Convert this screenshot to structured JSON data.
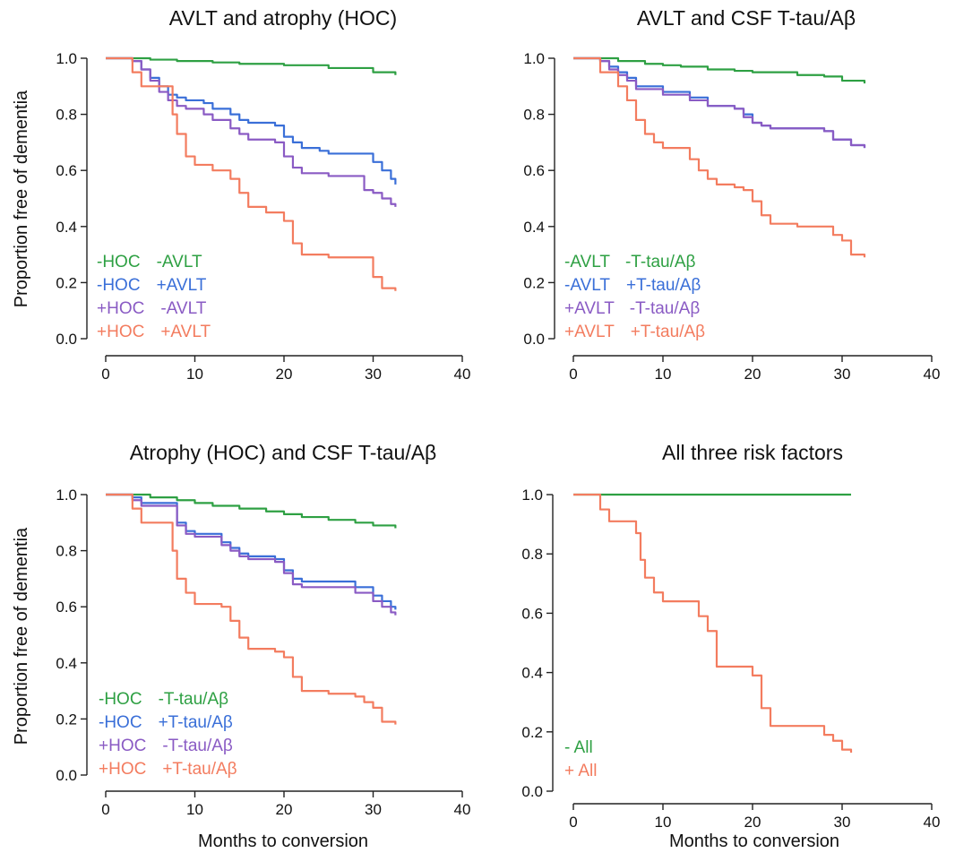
{
  "colors": {
    "green": "#2ea043",
    "blue": "#3a6fd8",
    "purple": "#8a5bc4",
    "red": "#f37c5f"
  },
  "chart_data": [
    {
      "type": "line",
      "title": "AVLT and atrophy (HOC)",
      "ylabel": "Proportion free of dementia",
      "xlabel": "",
      "xlim": [
        0,
        40
      ],
      "ylim": [
        0,
        1
      ],
      "xticks": [
        0,
        10,
        20,
        30,
        40
      ],
      "yticks": [
        "0.0",
        "0.2",
        "0.4",
        "0.6",
        "0.8",
        "1.0"
      ],
      "legend_placement": "bottom-left",
      "series": [
        {
          "name": [
            "-HOC",
            "-AVLT"
          ],
          "color": "#2ea043",
          "x": [
            0,
            3,
            5,
            8,
            12,
            15,
            20,
            25,
            30,
            32.5
          ],
          "y": [
            1.0,
            1.0,
            0.995,
            0.99,
            0.985,
            0.98,
            0.975,
            0.965,
            0.95,
            0.94
          ]
        },
        {
          "name": [
            "-HOC",
            "+AVLT"
          ],
          "color": "#3a6fd8",
          "x": [
            0,
            3,
            4,
            5,
            6,
            7,
            8,
            9,
            10,
            11,
            12,
            14,
            15,
            16,
            17,
            19,
            20,
            21,
            22,
            24,
            25,
            28,
            30,
            31,
            32,
            32.5
          ],
          "y": [
            1.0,
            0.99,
            0.96,
            0.93,
            0.9,
            0.87,
            0.86,
            0.85,
            0.85,
            0.84,
            0.82,
            0.8,
            0.78,
            0.77,
            0.77,
            0.76,
            0.72,
            0.7,
            0.68,
            0.67,
            0.66,
            0.66,
            0.63,
            0.6,
            0.57,
            0.55
          ]
        },
        {
          "name": [
            "+HOC",
            "-AVLT"
          ],
          "color": "#8a5bc4",
          "x": [
            0,
            3,
            4,
            5,
            6,
            7,
            8,
            9,
            10,
            11,
            12,
            14,
            15,
            16,
            19,
            20,
            21,
            22,
            24,
            25,
            28,
            29,
            30,
            31,
            32,
            32.5
          ],
          "y": [
            1.0,
            0.99,
            0.96,
            0.92,
            0.88,
            0.85,
            0.83,
            0.82,
            0.82,
            0.8,
            0.78,
            0.75,
            0.73,
            0.71,
            0.7,
            0.65,
            0.61,
            0.59,
            0.59,
            0.58,
            0.58,
            0.53,
            0.52,
            0.5,
            0.48,
            0.47
          ]
        },
        {
          "name": [
            "+HOC",
            "+AVLT"
          ],
          "color": "#f37c5f",
          "x": [
            0,
            2.5,
            3,
            4,
            7,
            7.5,
            8,
            9,
            10,
            12,
            14,
            15,
            16,
            18,
            20,
            21,
            22,
            25,
            29,
            30,
            31,
            32.5
          ],
          "y": [
            1.0,
            1.0,
            0.95,
            0.9,
            0.9,
            0.8,
            0.73,
            0.65,
            0.62,
            0.6,
            0.57,
            0.52,
            0.47,
            0.45,
            0.42,
            0.34,
            0.3,
            0.29,
            0.29,
            0.22,
            0.18,
            0.17
          ]
        }
      ]
    },
    {
      "type": "line",
      "title": "AVLT and CSF T-tau/Aβ",
      "ylabel": "",
      "xlabel": "",
      "xlim": [
        0,
        40
      ],
      "ylim": [
        0,
        1
      ],
      "xticks": [
        0,
        10,
        20,
        30,
        40
      ],
      "yticks": [
        "0.0",
        "0.2",
        "0.4",
        "0.6",
        "0.8",
        "1.0"
      ],
      "legend_placement": "bottom-left",
      "series": [
        {
          "name": [
            "-AVLT",
            "-T-tau/Aβ"
          ],
          "color": "#2ea043",
          "x": [
            0,
            3,
            5,
            8,
            10,
            12,
            15,
            18,
            20,
            25,
            28,
            30,
            32.5
          ],
          "y": [
            1.0,
            1.0,
            0.99,
            0.98,
            0.975,
            0.97,
            0.96,
            0.955,
            0.95,
            0.94,
            0.935,
            0.92,
            0.91
          ]
        },
        {
          "name": [
            "-AVLT",
            "+T-tau/Aβ"
          ],
          "color": "#3a6fd8",
          "x": [
            0,
            3,
            4,
            5,
            6,
            7,
            9,
            10,
            12,
            13,
            15,
            16,
            18,
            19,
            20,
            21,
            22,
            25,
            28,
            29,
            31,
            32.5
          ],
          "y": [
            1.0,
            0.99,
            0.97,
            0.95,
            0.93,
            0.9,
            0.9,
            0.88,
            0.88,
            0.86,
            0.83,
            0.83,
            0.82,
            0.8,
            0.77,
            0.76,
            0.75,
            0.75,
            0.74,
            0.71,
            0.69,
            0.68
          ]
        },
        {
          "name": [
            "+AVLT",
            "-T-tau/Aβ"
          ],
          "color": "#8a5bc4",
          "x": [
            0,
            3,
            4,
            5,
            6,
            7,
            9,
            10,
            12,
            13,
            15,
            16,
            18,
            19,
            20,
            21,
            22,
            25,
            28,
            29,
            31,
            32.5
          ],
          "y": [
            1.0,
            0.99,
            0.96,
            0.94,
            0.92,
            0.89,
            0.89,
            0.87,
            0.87,
            0.85,
            0.83,
            0.83,
            0.82,
            0.79,
            0.77,
            0.76,
            0.75,
            0.75,
            0.74,
            0.71,
            0.69,
            0.68
          ]
        },
        {
          "name": [
            "+AVLT",
            "+T-tau/Aβ"
          ],
          "color": "#f37c5f",
          "x": [
            0,
            2.5,
            3,
            5,
            6,
            7,
            8,
            9,
            10,
            12,
            13,
            14,
            15,
            16,
            18,
            19,
            20,
            21,
            22,
            24,
            25,
            28,
            29,
            30,
            31,
            32.5
          ],
          "y": [
            1.0,
            1.0,
            0.95,
            0.9,
            0.85,
            0.78,
            0.73,
            0.7,
            0.68,
            0.68,
            0.64,
            0.6,
            0.57,
            0.55,
            0.54,
            0.53,
            0.49,
            0.44,
            0.41,
            0.41,
            0.4,
            0.4,
            0.37,
            0.35,
            0.3,
            0.29
          ]
        }
      ]
    },
    {
      "type": "line",
      "title": "Atrophy (HOC) and CSF T-tau/Aβ",
      "ylabel": "Proportion free of dementia",
      "xlabel": "Months to conversion",
      "xlim": [
        0,
        40
      ],
      "ylim": [
        0,
        1
      ],
      "xticks": [
        0,
        10,
        20,
        30,
        40
      ],
      "yticks": [
        "0.0",
        "0.2",
        "0.4",
        "0.6",
        "0.8",
        "1.0"
      ],
      "legend_placement": "bottom-left",
      "series": [
        {
          "name": [
            "-HOC",
            "-T-tau/Aβ"
          ],
          "color": "#2ea043",
          "x": [
            0,
            3,
            5,
            8,
            10,
            12,
            15,
            18,
            20,
            22,
            25,
            28,
            30,
            32.5
          ],
          "y": [
            1.0,
            1.0,
            0.99,
            0.98,
            0.97,
            0.96,
            0.95,
            0.94,
            0.93,
            0.92,
            0.91,
            0.9,
            0.89,
            0.88
          ]
        },
        {
          "name": [
            "-HOC",
            "+T-tau/Aβ"
          ],
          "color": "#3a6fd8",
          "x": [
            0,
            3,
            4,
            7,
            8,
            9,
            10,
            12,
            13,
            14,
            15,
            16,
            19,
            20,
            21,
            22,
            25,
            28,
            30,
            31,
            32,
            32.5
          ],
          "y": [
            1.0,
            0.99,
            0.97,
            0.97,
            0.9,
            0.87,
            0.86,
            0.86,
            0.83,
            0.81,
            0.79,
            0.78,
            0.77,
            0.73,
            0.7,
            0.69,
            0.69,
            0.67,
            0.64,
            0.62,
            0.6,
            0.59
          ]
        },
        {
          "name": [
            "+HOC",
            "-T-tau/Aβ"
          ],
          "color": "#8a5bc4",
          "x": [
            0,
            3,
            4,
            7,
            8,
            9,
            10,
            12,
            13,
            14,
            15,
            16,
            19,
            20,
            21,
            22,
            25,
            28,
            30,
            31,
            32,
            32.5
          ],
          "y": [
            1.0,
            0.98,
            0.96,
            0.96,
            0.89,
            0.86,
            0.85,
            0.85,
            0.82,
            0.8,
            0.78,
            0.77,
            0.76,
            0.72,
            0.68,
            0.67,
            0.67,
            0.65,
            0.62,
            0.6,
            0.58,
            0.57
          ]
        },
        {
          "name": [
            "+HOC",
            "+T-tau/Aβ"
          ],
          "color": "#f37c5f",
          "x": [
            0,
            2.5,
            3,
            4,
            7,
            7.5,
            8,
            9,
            10,
            13,
            14,
            15,
            16,
            19,
            20,
            21,
            22,
            25,
            28,
            29,
            30,
            31,
            32.5
          ],
          "y": [
            1.0,
            1.0,
            0.95,
            0.9,
            0.9,
            0.8,
            0.7,
            0.65,
            0.61,
            0.6,
            0.55,
            0.49,
            0.45,
            0.44,
            0.42,
            0.35,
            0.3,
            0.29,
            0.28,
            0.26,
            0.24,
            0.19,
            0.18
          ]
        }
      ]
    },
    {
      "type": "line",
      "title": "All three risk factors",
      "ylabel": "",
      "xlabel": "Months to conversion",
      "xlim": [
        0,
        40
      ],
      "ylim": [
        0,
        1
      ],
      "xticks": [
        0,
        10,
        20,
        30,
        40
      ],
      "yticks": [
        "0.0",
        "0.2",
        "0.4",
        "0.6",
        "0.8",
        "1.0"
      ],
      "legend_placement": "bottom-left",
      "series": [
        {
          "name": [
            "- All"
          ],
          "color": "#2ea043",
          "x": [
            0,
            31
          ],
          "y": [
            1.0,
            1.0
          ]
        },
        {
          "name": [
            "+ All"
          ],
          "color": "#f37c5f",
          "x": [
            0,
            2.5,
            3,
            4,
            5,
            7,
            7.5,
            8,
            9,
            10,
            13,
            14,
            15,
            16,
            19,
            20,
            21,
            22,
            25,
            28,
            29,
            30,
            31
          ],
          "y": [
            1.0,
            1.0,
            0.95,
            0.91,
            0.91,
            0.87,
            0.78,
            0.72,
            0.67,
            0.64,
            0.64,
            0.59,
            0.54,
            0.42,
            0.42,
            0.39,
            0.28,
            0.22,
            0.22,
            0.19,
            0.17,
            0.14,
            0.13
          ]
        }
      ]
    }
  ]
}
